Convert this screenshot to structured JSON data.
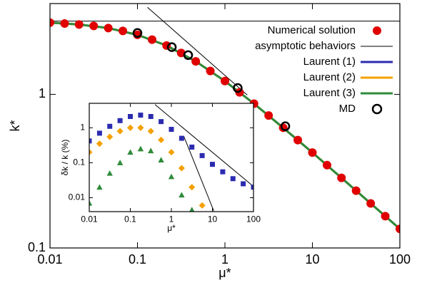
{
  "chart_data": [
    {
      "type": "line",
      "xlabel": "μ*",
      "ylabel": "k*",
      "xscale": "log",
      "yscale": "log",
      "xlim": [
        0.01,
        100
      ],
      "ylim": [
        0.1,
        3.9
      ],
      "xticks": [
        0.01,
        0.1,
        1,
        10,
        100
      ],
      "yticks": [
        0.1,
        1
      ],
      "legend": "upper right",
      "series": [
        {
          "name": "Numerical solution",
          "color": "#e00000",
          "marker": "circle",
          "x": [
            0.01,
            0.0147,
            0.0215,
            0.0316,
            0.0464,
            0.0681,
            0.1,
            0.147,
            0.215,
            0.316,
            0.464,
            0.681,
            1,
            1.47,
            2.15,
            3.16,
            4.64,
            6.81,
            10,
            14.7,
            21.5,
            31.6,
            46.4,
            68.1,
            100
          ],
          "values": [
            2.93,
            2.89,
            2.85,
            2.79,
            2.7,
            2.59,
            2.44,
            2.27,
            2.08,
            1.86,
            1.64,
            1.42,
            1.22,
            1.03,
            0.87,
            0.728,
            0.606,
            0.504,
            0.418,
            0.346,
            0.286,
            0.236,
            0.195,
            0.161,
            0.133
          ]
        },
        {
          "name": "asymptotic behaviors",
          "color": "#000000",
          "x": [
            0.01,
            100,
            null,
            0.13,
            1.8
          ],
          "values": [
            3,
            3,
            null,
            3.69,
            0.99
          ]
        },
        {
          "name": "Laurent (1)",
          "color": "#2b2bb0",
          "x": [
            0.01,
            0.0215,
            0.0464,
            0.1,
            0.215,
            0.464,
            1,
            2.15,
            4.64,
            10,
            21.5,
            46.4,
            100
          ],
          "values": [
            2.93,
            2.85,
            2.7,
            2.44,
            2.08,
            1.64,
            1.22,
            0.87,
            0.606,
            0.418,
            0.286,
            0.195,
            0.133
          ]
        },
        {
          "name": "Laurent (2)",
          "color": "#f5a000",
          "x": [
            0.01,
            0.0215,
            0.0464,
            0.1,
            0.215,
            0.464,
            1,
            2.15,
            4.64,
            10,
            21.5,
            46.4,
            100
          ],
          "values": [
            2.93,
            2.85,
            2.7,
            2.44,
            2.08,
            1.64,
            1.22,
            0.87,
            0.606,
            0.418,
            0.286,
            0.195,
            0.133
          ]
        },
        {
          "name": "Laurent (3)",
          "color": "#2e8b3a",
          "x": [
            0.01,
            0.0215,
            0.0464,
            0.1,
            0.215,
            0.464,
            1,
            2.15,
            4.64,
            10,
            21.5,
            46.4,
            100
          ],
          "values": [
            2.93,
            2.85,
            2.7,
            2.44,
            2.08,
            1.64,
            1.22,
            0.87,
            0.606,
            0.418,
            0.286,
            0.195,
            0.133
          ]
        },
        {
          "name": "MD",
          "color": "#000000",
          "marker": "ring",
          "x": [
            0.1,
            0.247,
            0.38,
            1.4,
            4.9
          ],
          "values": [
            2.51,
            2.03,
            1.8,
            1.1,
            0.62
          ]
        }
      ]
    },
    {
      "type": "line",
      "xlabel": "μ*",
      "ylabel": "δk / k (%)",
      "xscale": "log",
      "yscale": "log",
      "xlim": [
        0.01,
        100
      ],
      "ylim": [
        0.004,
        5
      ],
      "xticks": [
        0.01,
        0.1,
        1,
        10,
        100
      ],
      "yticks": [
        0.01,
        0.1,
        1
      ],
      "series": [
        {
          "color": "#2b2bb0",
          "marker": "square",
          "x": [
            0.01,
            0.0178,
            0.0316,
            0.0562,
            0.1,
            0.178,
            0.316,
            0.562,
            1,
            1.78,
            3.16,
            5.62,
            10,
            17.8,
            31.6,
            56.2,
            100
          ],
          "values": [
            0.42,
            0.7,
            1.1,
            1.6,
            2.1,
            2.3,
            2.1,
            1.5,
            0.9,
            0.5,
            0.28,
            0.16,
            0.09,
            0.055,
            0.035,
            0.025,
            0.02
          ]
        },
        {
          "color": "#f5a000",
          "marker": "diamond",
          "x": [
            0.01,
            0.0178,
            0.0316,
            0.0562,
            0.1,
            0.178,
            0.316,
            0.562,
            1,
            1.78,
            3.16,
            5.62
          ],
          "values": [
            0.2,
            0.35,
            0.55,
            0.8,
            1.0,
            1.0,
            0.8,
            0.45,
            0.2,
            0.07,
            0.02,
            0.006
          ]
        },
        {
          "color": "#2e8b3a",
          "marker": "triangle",
          "x": [
            0.01,
            0.0178,
            0.0316,
            0.0562,
            0.1,
            0.178,
            0.316,
            0.562,
            1,
            1.78,
            3.16
          ],
          "values": [
            0.007,
            0.02,
            0.05,
            0.1,
            0.2,
            0.25,
            0.22,
            0.12,
            0.04,
            0.012,
            0.0045
          ]
        },
        {
          "color": "#000000",
          "x": [
            0.4,
            100,
            null,
            2.0,
            10.8
          ],
          "values": [
            4.6,
            0.021,
            null,
            0.58,
            0.0042
          ]
        }
      ]
    }
  ]
}
